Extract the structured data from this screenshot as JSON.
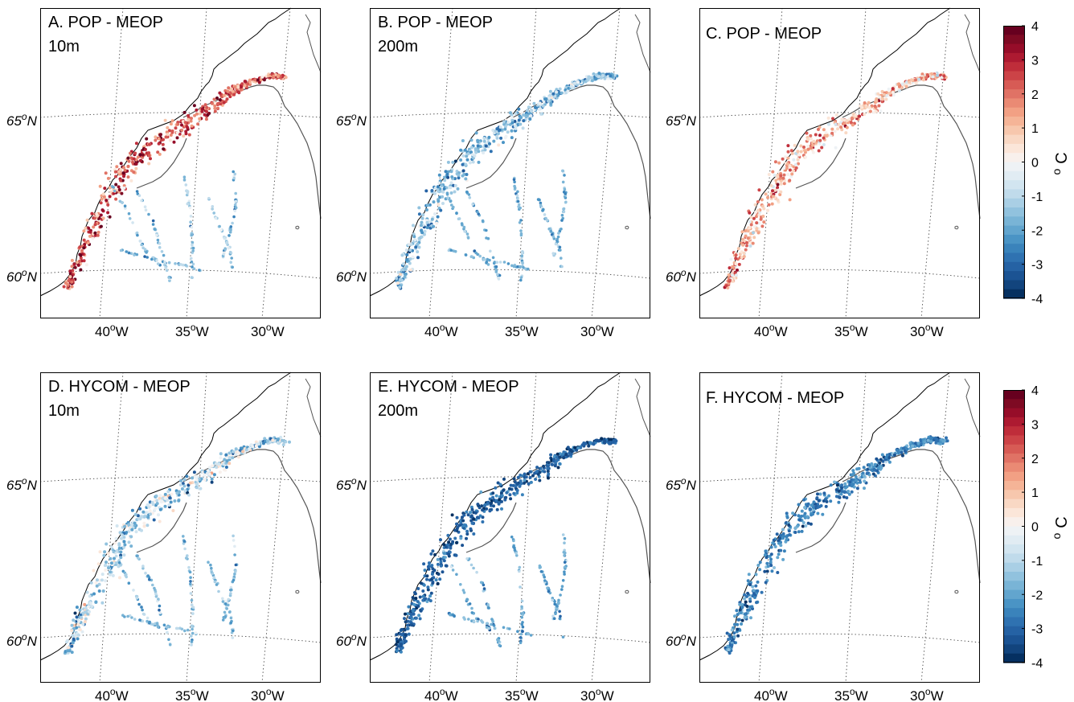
{
  "figure": {
    "colorbar": {
      "ticks": [
        "4",
        "3",
        "2",
        "1",
        "0",
        "-1",
        "-2",
        "-3",
        "-4"
      ],
      "unit_symbol": "o",
      "unit_letter": "C",
      "colors": [
        "#67001f",
        "#7e0a23",
        "#960d29",
        "#ad1a31",
        "#bf2d3a",
        "#cc4347",
        "#d75b55",
        "#e07265",
        "#ea8a74",
        "#f2a084",
        "#f5b497",
        "#f7c7ad",
        "#f9d8c4",
        "#fbe6d9",
        "#f8f0ec",
        "#eef2f5",
        "#e1ecf3",
        "#d2e5f0",
        "#c0dbeb",
        "#a9cfe5",
        "#91c2de",
        "#79b4d6",
        "#62a5ce",
        "#4a94c5",
        "#3a83bb",
        "#2f72b1",
        "#2562a4",
        "#1b5393",
        "#12447d",
        "#053061"
      ]
    },
    "lat_labels": [
      {
        "deg": "65",
        "sup": "o",
        "hemi": "N"
      },
      {
        "deg": "60",
        "sup": "o",
        "hemi": "N"
      }
    ],
    "lon_labels": [
      {
        "deg": "40",
        "sup": "o",
        "hemi": "W"
      },
      {
        "deg": "35",
        "sup": "o",
        "hemi": "W"
      },
      {
        "deg": "30",
        "sup": "o",
        "hemi": "W"
      }
    ]
  },
  "chart_data": [
    {
      "type": "scatter",
      "panel": "A",
      "title_line1": "A. POP - MEOP",
      "title_line2": "10m",
      "variable": "temperature difference",
      "unit": "°C",
      "color_range": [
        -4,
        4
      ],
      "dominant_sign": "positive near shelf break (up to +4), negative offshore"
    },
    {
      "type": "scatter",
      "panel": "B",
      "title_line1": "B. POP - MEOP",
      "title_line2": "200m",
      "variable": "temperature difference",
      "unit": "°C",
      "color_range": [
        -4,
        4
      ],
      "dominant_sign": "mostly negative (-1 to -4)"
    },
    {
      "type": "scatter",
      "panel": "C",
      "title_line1": "C. POP - MEOP",
      "title_line2": "",
      "variable": "temperature difference",
      "unit": "°C",
      "color_range": [
        -4,
        4
      ],
      "dominant_sign": "mixed, positive along southern shelf"
    },
    {
      "type": "scatter",
      "panel": "D",
      "title_line1": "D. HYCOM - MEOP",
      "title_line2": "10m",
      "variable": "temperature difference",
      "unit": "°C",
      "color_range": [
        -4,
        4
      ],
      "dominant_sign": "mostly negative, some positive near shelf"
    },
    {
      "type": "scatter",
      "panel": "E",
      "title_line1": "E. HYCOM - MEOP",
      "title_line2": "200m",
      "variable": "temperature difference",
      "unit": "°C",
      "color_range": [
        -4,
        4
      ],
      "dominant_sign": "strongly negative (-3 to -4)"
    },
    {
      "type": "scatter",
      "panel": "F",
      "title_line1": "F. HYCOM - MEOP",
      "title_line2": "",
      "variable": "temperature difference",
      "unit": "°C",
      "color_range": [
        -4,
        4
      ],
      "dominant_sign": "mostly negative (-2 to -4)"
    }
  ]
}
